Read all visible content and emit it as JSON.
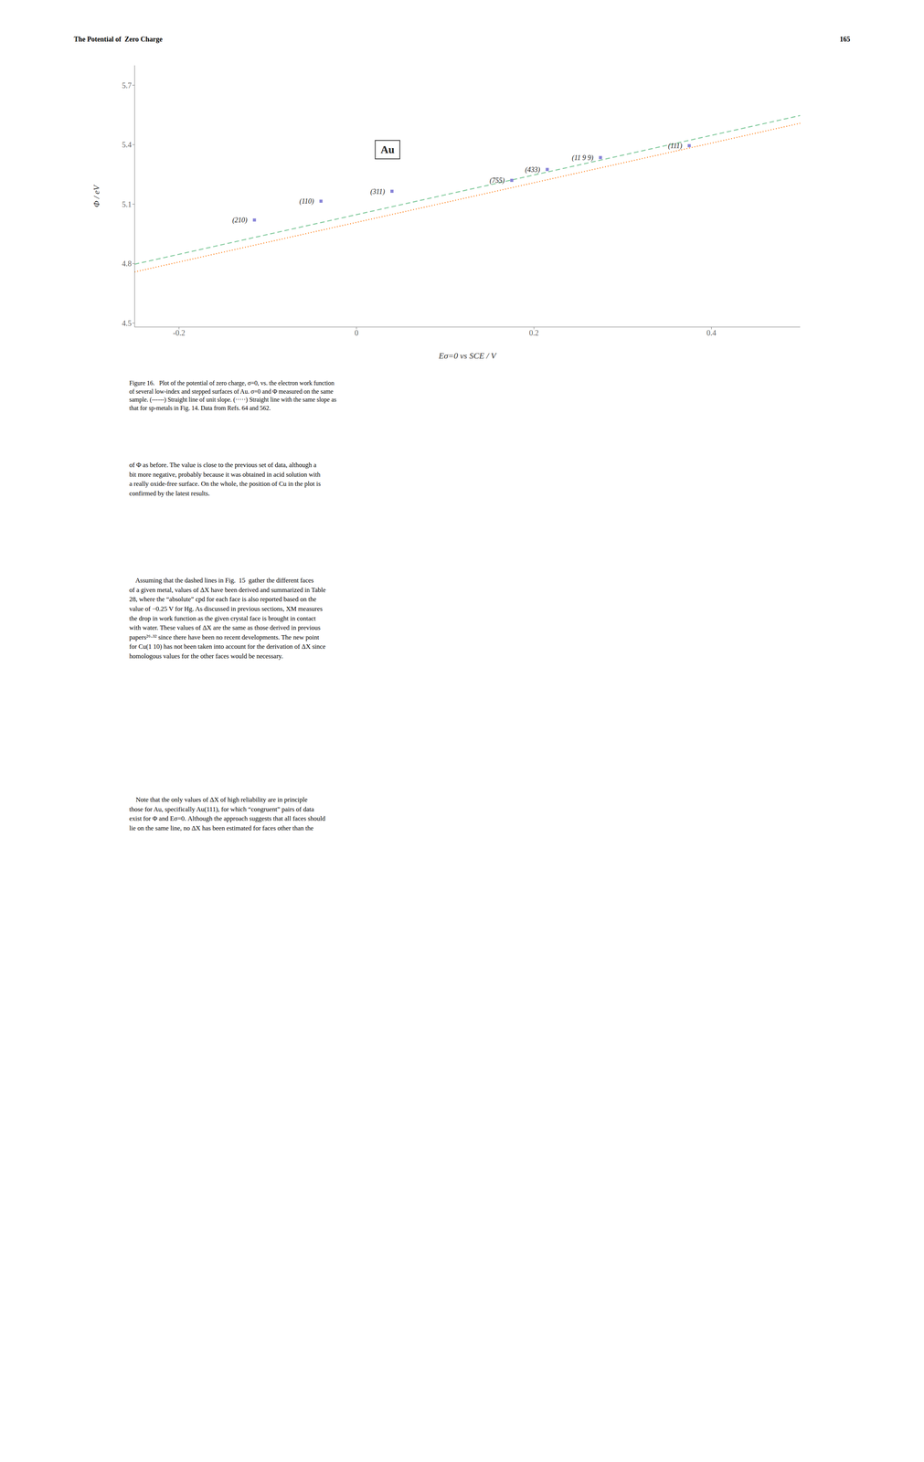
{
  "chart_data": {
    "type": "scatter",
    "title": "The Potential of  Zero Charge",
    "xlabel": "Eσ=0 vs SCE / V",
    "ylabel": "Φ / eV",
    "xlim": [
      -0.25,
      0.5
    ],
    "ylim": [
      4.48,
      5.8
    ],
    "xticks": [
      -0.2,
      0.0,
      0.2,
      0.4
    ],
    "yticks": [
      4.5,
      4.8,
      5.1,
      5.4,
      5.7
    ],
    "series": [
      {
        "type": "scatter",
        "marker": "square",
        "x": [
          -0.115,
          -0.04,
          0.04,
          0.175,
          0.215,
          0.275,
          0.375
        ],
        "values": [
          5.02,
          5.115,
          5.165,
          5.22,
          5.275,
          5.335,
          5.395
        ],
        "labels": [
          "(210)",
          "(110)",
          "(311)",
          "(755)",
          "(433)",
          "(11 9 9)",
          "(111)"
        ]
      },
      {
        "type": "line",
        "line_style": "dashed",
        "x": [
          -0.25,
          0.5
        ],
        "values": [
          4.797,
          5.547
        ]
      },
      {
        "type": "line",
        "line_style": "dotted",
        "x": [
          -0.25,
          0.5
        ],
        "values": [
          4.758,
          5.508
        ]
      }
    ],
    "annotations": [
      {
        "text": "165"
      },
      {
        "text": "Au",
        "x": 0.035,
        "y": 5.375
      },
      {
        "text": "Figure 16.   Plot of the potential of zero charge, σ=0, vs. the electron work function\nof several low-index and stepped surfaces of Au. σ=0 and Φ measured on the same\nsample. (------) Straight line of unit slope. (·····) Straight line with the same slope as\nthat for sp-metals in Fig. 14. Data from Refs. 64 and 562."
      },
      {
        "text": "of Φ as before. The value is close to the previous set of data, although a\nbit more negative, probably because it was obtained in acid solution with\na really oxide-free surface. On the whole, the position of Cu in the plot is\nconfirmed by the latest results."
      },
      {
        "text": "    Assuming that the dashed lines in Fig.  15  gather the different faces\nof a given metal, values of ΔΧ have been derived and summarized in Table\n28, where the “absolute” cpd for each face is also reported based on the\nvalue of −0.25 V for Hg. As discussed in previous sections, ΧM measures\nthe drop in work function as the given crystal face is brought in contact\nwith water. These values of ΔΧ are the same as those derived in previous\npapers²⁶·³² since there have been no recent developments. The new point\nfor Cu(1 10) has not been taken into account for the derivation of ΔΧ since\nhomologous values for the other faces would be necessary."
      },
      {
        "text": "    Note that the only values of ΔΧ of high reliability are in principle\nthose for Au, specifically Au(111), for which “congruent” pairs of data\nexist for Φ and Eσ=0. Although the approach suggests that all faces should\nlie on the same line, no ΔΧ has been estimated for faces other than the"
      }
    ]
  }
}
